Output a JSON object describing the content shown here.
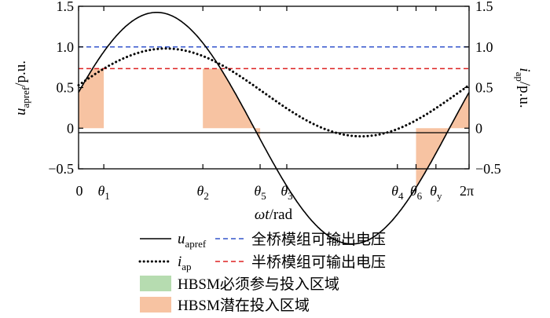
{
  "chart_data": {
    "type": "line",
    "xlabel": {
      "main": "ωt",
      "unit": "/rad"
    },
    "ylabel_left": {
      "main": "u",
      "sub": "apref",
      "unit": "/p.u."
    },
    "ylabel_right": {
      "main": "i",
      "sub": "ap",
      "unit": "/p.u."
    },
    "xlim": [
      0,
      6.2832
    ],
    "ylim": [
      -0.5,
      1.5
    ],
    "y_ticks": [
      -0.5,
      0,
      0.5,
      1.0,
      1.5
    ],
    "y_tick_labels": [
      "−0.5",
      "0",
      "0.5",
      "1.0",
      "1.5"
    ],
    "x_ticks": [
      {
        "x": 0,
        "main": "0",
        "sub": ""
      },
      {
        "x": 0.406,
        "main": "θ",
        "sub": "1"
      },
      {
        "x": 2.0,
        "main": "θ",
        "sub": "2"
      },
      {
        "x": 2.921,
        "main": "θ",
        "sub": "5"
      },
      {
        "x": 3.35,
        "main": "θ",
        "sub": "3"
      },
      {
        "x": 5.13,
        "main": "θ",
        "sub": "4"
      },
      {
        "x": 5.43,
        "main": "θ",
        "sub": "6"
      },
      {
        "x": 5.75,
        "main": "θ",
        "sub": "y"
      },
      {
        "x": 6.2832,
        "main": "2π",
        "sub": ""
      }
    ],
    "series": [
      {
        "name": "u",
        "sub": "apref",
        "style": "solid",
        "color": "#000000",
        "func": "1.425*sin(x-(-0.315))"
      },
      {
        "name": "i",
        "sub": "ap",
        "style": "dotted",
        "color": "#000000",
        "func": "0.44+0.54*sin(x+0.165)"
      }
    ],
    "reference_lines": [
      {
        "name": "全桥模组可输出电压",
        "y": 1.0,
        "color": "#3355cc",
        "style": "dashed"
      },
      {
        "name": "半桥模组可输出电压",
        "y": 0.733,
        "color": "#dd2222",
        "style": "dashed"
      }
    ],
    "regions": [
      {
        "name": "HBSM必须参与投入区域",
        "color": "#b6dcb0",
        "x_range": [
          3.35,
          5.13
        ],
        "lower": 1.0,
        "upper": "u"
      },
      {
        "name": "HBSM潜在投入区域",
        "color": "#f7c3a2",
        "x_ranges": [
          [
            0,
            0.406
          ],
          [
            2.0,
            2.921
          ],
          [
            5.43,
            6.2832
          ]
        ],
        "lower": 0,
        "upper": "min(u,0.733)"
      }
    ],
    "legend": {
      "placement": "bottom",
      "items": [
        {
          "kind": "line",
          "style": "solid",
          "color": "#000000",
          "label_main": "u",
          "label_sub": "apref"
        },
        {
          "kind": "line",
          "style": "dashed",
          "color": "#3355cc",
          "label": "全桥模组可输出电压"
        },
        {
          "kind": "line",
          "style": "dotted",
          "color": "#000000",
          "label_main": "i",
          "label_sub": "ap"
        },
        {
          "kind": "line",
          "style": "dashed",
          "color": "#dd2222",
          "label": "半桥模组可输出电压"
        },
        {
          "kind": "patch",
          "color": "#b6dcb0",
          "label": "HBSM必须参与投入区域"
        },
        {
          "kind": "patch",
          "color": "#f7c3a2",
          "label": "HBSM潜在投入区域"
        }
      ]
    }
  }
}
